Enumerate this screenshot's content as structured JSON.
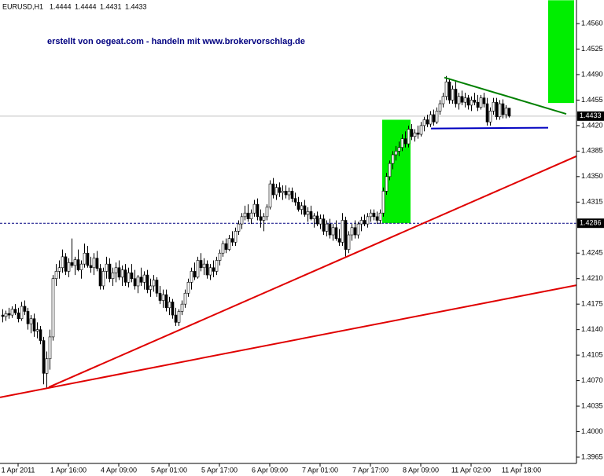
{
  "chart_data": {
    "type": "candlestick",
    "symbol": "EURUSD,H1",
    "annotation": "erstellt von oegeat.com - handeln mit www.brokervorschlag.de",
    "candles": [
      [
        1.416,
        1.4168,
        1.415,
        1.4158
      ],
      [
        1.4158,
        1.4166,
        1.4152,
        1.4162
      ],
      [
        1.4162,
        1.417,
        1.4155,
        1.416
      ],
      [
        1.416,
        1.4172,
        1.4156,
        1.4168
      ],
      [
        1.4168,
        1.4175,
        1.416,
        1.4163
      ],
      [
        1.4163,
        1.417,
        1.415,
        1.4155
      ],
      [
        1.4155,
        1.4178,
        1.4152,
        1.4172
      ],
      [
        1.4172,
        1.418,
        1.416,
        1.4165
      ],
      [
        1.4165,
        1.417,
        1.414,
        1.4148
      ],
      [
        1.4148,
        1.416,
        1.4135,
        1.4155
      ],
      [
        1.4155,
        1.4162,
        1.413,
        1.4138
      ],
      [
        1.4138,
        1.415,
        1.4128,
        1.414
      ],
      [
        1.414,
        1.4145,
        1.412,
        1.4125
      ],
      [
        1.4125,
        1.413,
        1.4065,
        1.408
      ],
      [
        1.408,
        1.411,
        1.406,
        1.41
      ],
      [
        1.41,
        1.414,
        1.4085,
        1.413
      ],
      [
        1.413,
        1.4215,
        1.4125,
        1.421
      ],
      [
        1.421,
        1.423,
        1.42,
        1.422
      ],
      [
        1.422,
        1.4235,
        1.421,
        1.4225
      ],
      [
        1.4225,
        1.425,
        1.4218,
        1.424
      ],
      [
        1.424,
        1.4245,
        1.4215,
        1.422
      ],
      [
        1.422,
        1.4238,
        1.4212,
        1.4232
      ],
      [
        1.4232,
        1.4265,
        1.4225,
        1.4228
      ],
      [
        1.4228,
        1.424,
        1.4215,
        1.4236
      ],
      [
        1.4236,
        1.425,
        1.422,
        1.4222
      ],
      [
        1.4222,
        1.4235,
        1.421,
        1.423
      ],
      [
        1.423,
        1.4258,
        1.4225,
        1.4245
      ],
      [
        1.4245,
        1.4255,
        1.4225,
        1.4228
      ],
      [
        1.4228,
        1.424,
        1.4218,
        1.4225
      ],
      [
        1.4225,
        1.4245,
        1.4215,
        1.4238
      ],
      [
        1.4238,
        1.4248,
        1.422,
        1.4224
      ],
      [
        1.4224,
        1.423,
        1.4195,
        1.42
      ],
      [
        1.42,
        1.4225,
        1.4195,
        1.422
      ],
      [
        1.422,
        1.424,
        1.421,
        1.423
      ],
      [
        1.423,
        1.4238,
        1.4205,
        1.421
      ],
      [
        1.421,
        1.4225,
        1.42,
        1.4218
      ],
      [
        1.4218,
        1.4232,
        1.4205,
        1.4225
      ],
      [
        1.4225,
        1.4235,
        1.4208,
        1.4212
      ],
      [
        1.4212,
        1.4228,
        1.42,
        1.4222
      ],
      [
        1.4222,
        1.423,
        1.42,
        1.4205
      ],
      [
        1.4205,
        1.4225,
        1.4198,
        1.4218
      ],
      [
        1.4218,
        1.423,
        1.4205,
        1.421
      ],
      [
        1.421,
        1.4222,
        1.4195,
        1.42
      ],
      [
        1.42,
        1.4215,
        1.419,
        1.4212
      ],
      [
        1.4212,
        1.4225,
        1.42,
        1.4205
      ],
      [
        1.4205,
        1.422,
        1.4195,
        1.4215
      ],
      [
        1.4215,
        1.4222,
        1.419,
        1.4195
      ],
      [
        1.4195,
        1.421,
        1.4185,
        1.42
      ],
      [
        1.42,
        1.4215,
        1.4192,
        1.4208
      ],
      [
        1.4208,
        1.4212,
        1.4185,
        1.419
      ],
      [
        1.419,
        1.42,
        1.4175,
        1.418
      ],
      [
        1.418,
        1.4195,
        1.417,
        1.4188
      ],
      [
        1.4188,
        1.4195,
        1.4165,
        1.417
      ],
      [
        1.417,
        1.4185,
        1.416,
        1.4178
      ],
      [
        1.4178,
        1.4182,
        1.4155,
        1.416
      ],
      [
        1.416,
        1.417,
        1.4145,
        1.415
      ],
      [
        1.415,
        1.4168,
        1.4145,
        1.4165
      ],
      [
        1.4165,
        1.418,
        1.416,
        1.4175
      ],
      [
        1.4175,
        1.4195,
        1.417,
        1.419
      ],
      [
        1.419,
        1.421,
        1.4185,
        1.4205
      ],
      [
        1.4205,
        1.4225,
        1.4195,
        1.422
      ],
      [
        1.422,
        1.4232,
        1.4208,
        1.4212
      ],
      [
        1.4212,
        1.424,
        1.421,
        1.4235
      ],
      [
        1.4235,
        1.4245,
        1.422,
        1.4225
      ],
      [
        1.4225,
        1.4238,
        1.4215,
        1.423
      ],
      [
        1.423,
        1.4235,
        1.421,
        1.4215
      ],
      [
        1.4215,
        1.423,
        1.4208,
        1.4225
      ],
      [
        1.4225,
        1.4235,
        1.4212,
        1.422
      ],
      [
        1.422,
        1.424,
        1.4215,
        1.4235
      ],
      [
        1.4235,
        1.425,
        1.4228,
        1.4245
      ],
      [
        1.4245,
        1.4262,
        1.424,
        1.4258
      ],
      [
        1.4258,
        1.4265,
        1.4245,
        1.425
      ],
      [
        1.425,
        1.427,
        1.4248,
        1.4265
      ],
      [
        1.4265,
        1.4275,
        1.4255,
        1.426
      ],
      [
        1.426,
        1.428,
        1.4255,
        1.4275
      ],
      [
        1.4275,
        1.429,
        1.427,
        1.4285
      ],
      [
        1.4285,
        1.43,
        1.4278,
        1.4295
      ],
      [
        1.4295,
        1.431,
        1.429,
        1.43
      ],
      [
        1.43,
        1.4312,
        1.4288,
        1.4292
      ],
      [
        1.4292,
        1.4305,
        1.4285,
        1.43
      ],
      [
        1.43,
        1.4318,
        1.4295,
        1.4312
      ],
      [
        1.4312,
        1.432,
        1.429,
        1.4295
      ],
      [
        1.4295,
        1.4305,
        1.428,
        1.429
      ],
      [
        1.429,
        1.43,
        1.4275,
        1.4295
      ],
      [
        1.4295,
        1.4312,
        1.429,
        1.4308
      ],
      [
        1.4308,
        1.4345,
        1.4305,
        1.434
      ],
      [
        1.434,
        1.4348,
        1.432,
        1.4325
      ],
      [
        1.4325,
        1.434,
        1.4318,
        1.4335
      ],
      [
        1.4335,
        1.4342,
        1.4322,
        1.4328
      ],
      [
        1.4328,
        1.4338,
        1.4318,
        1.433
      ],
      [
        1.433,
        1.4338,
        1.432,
        1.4325
      ],
      [
        1.4325,
        1.4335,
        1.4318,
        1.433
      ],
      [
        1.433,
        1.4335,
        1.4315,
        1.432
      ],
      [
        1.432,
        1.4328,
        1.431,
        1.4315
      ],
      [
        1.4315,
        1.4322,
        1.4302,
        1.4305
      ],
      [
        1.4305,
        1.4315,
        1.4298,
        1.431
      ],
      [
        1.431,
        1.4318,
        1.4295,
        1.4298
      ],
      [
        1.4298,
        1.4308,
        1.4288,
        1.4302
      ],
      [
        1.4302,
        1.431,
        1.429,
        1.4292
      ],
      [
        1.4292,
        1.43,
        1.428,
        1.4296
      ],
      [
        1.4296,
        1.4302,
        1.4282,
        1.4285
      ],
      [
        1.4285,
        1.4298,
        1.4278,
        1.4292
      ],
      [
        1.4292,
        1.4298,
        1.427,
        1.4275
      ],
      [
        1.4275,
        1.429,
        1.4268,
        1.4285
      ],
      [
        1.4285,
        1.4292,
        1.4265,
        1.427
      ],
      [
        1.427,
        1.4285,
        1.4262,
        1.428
      ],
      [
        1.428,
        1.429,
        1.4262,
        1.4265
      ],
      [
        1.4265,
        1.4278,
        1.4255,
        1.426
      ],
      [
        1.426,
        1.43,
        1.4255,
        1.429
      ],
      [
        1.429,
        1.4295,
        1.424,
        1.425
      ],
      [
        1.425,
        1.4275,
        1.4245,
        1.427
      ],
      [
        1.427,
        1.4285,
        1.4262,
        1.428
      ],
      [
        1.428,
        1.429,
        1.4265,
        1.427
      ],
      [
        1.427,
        1.4288,
        1.4265,
        1.4285
      ],
      [
        1.4285,
        1.4295,
        1.4275,
        1.429
      ],
      [
        1.429,
        1.4298,
        1.4282,
        1.4285
      ],
      [
        1.4285,
        1.43,
        1.428,
        1.4295
      ],
      [
        1.4295,
        1.4305,
        1.4288,
        1.43
      ],
      [
        1.43,
        1.4305,
        1.429,
        1.4295
      ],
      [
        1.4295,
        1.4302,
        1.4285,
        1.429
      ],
      [
        1.429,
        1.4305,
        1.4285,
        1.43
      ],
      [
        1.43,
        1.4335,
        1.4295,
        1.433
      ],
      [
        1.433,
        1.4355,
        1.4325,
        1.435
      ],
      [
        1.435,
        1.4372,
        1.4345,
        1.4368
      ],
      [
        1.4368,
        1.4385,
        1.436,
        1.438
      ],
      [
        1.438,
        1.4392,
        1.4372,
        1.4385
      ],
      [
        1.4385,
        1.4398,
        1.4378,
        1.439
      ],
      [
        1.439,
        1.4408,
        1.4385,
        1.4402
      ],
      [
        1.4402,
        1.4412,
        1.439,
        1.4395
      ],
      [
        1.4395,
        1.442,
        1.439,
        1.4415
      ],
      [
        1.4415,
        1.4422,
        1.44,
        1.4405
      ],
      [
        1.4405,
        1.4415,
        1.4398,
        1.441
      ],
      [
        1.441,
        1.442,
        1.4402,
        1.4408
      ],
      [
        1.4408,
        1.4425,
        1.4405,
        1.442
      ],
      [
        1.442,
        1.4432,
        1.4412,
        1.4428
      ],
      [
        1.4428,
        1.4435,
        1.4418,
        1.4422
      ],
      [
        1.4422,
        1.444,
        1.4418,
        1.4435
      ],
      [
        1.4435,
        1.4442,
        1.442,
        1.4425
      ],
      [
        1.4425,
        1.4445,
        1.4422,
        1.444
      ],
      [
        1.444,
        1.4455,
        1.4435,
        1.445
      ],
      [
        1.445,
        1.4465,
        1.4445,
        1.446
      ],
      [
        1.446,
        1.4488,
        1.4455,
        1.448
      ],
      [
        1.448,
        1.4485,
        1.445,
        1.4455
      ],
      [
        1.4455,
        1.4475,
        1.445,
        1.447
      ],
      [
        1.447,
        1.4482,
        1.4445,
        1.445
      ],
      [
        1.445,
        1.4465,
        1.4442,
        1.446
      ],
      [
        1.446,
        1.4468,
        1.4448,
        1.4452
      ],
      [
        1.4452,
        1.4465,
        1.4445,
        1.4458
      ],
      [
        1.4458,
        1.4462,
        1.4442,
        1.4448
      ],
      [
        1.4448,
        1.446,
        1.444,
        1.4455
      ],
      [
        1.4455,
        1.4465,
        1.4448,
        1.4452
      ],
      [
        1.4452,
        1.4462,
        1.444,
        1.4445
      ],
      [
        1.4445,
        1.4462,
        1.4442,
        1.4458
      ],
      [
        1.4458,
        1.4465,
        1.4445,
        1.445
      ],
      [
        1.445,
        1.4458,
        1.442,
        1.4425
      ],
      [
        1.4425,
        1.4445,
        1.442,
        1.444
      ],
      [
        1.444,
        1.4458,
        1.4435,
        1.4452
      ],
      [
        1.4452,
        1.4458,
        1.4428,
        1.4432
      ],
      [
        1.4432,
        1.4455,
        1.4428,
        1.445
      ],
      [
        1.445,
        1.4456,
        1.443,
        1.4435
      ],
      [
        1.4435,
        1.4448,
        1.443,
        1.4444
      ],
      [
        1.4444,
        1.4444,
        1.4431,
        1.4433
      ]
    ],
    "up_color": "#ffffff",
    "down_color": "#000000",
    "wick_color": "#000000",
    "ylim": [
      1.3965,
      1.456
    ],
    "yticks": [
      1.3965,
      {
        "value": 1.4,
        "label": "1.4000"
      },
      1.4035,
      {
        "value": 1.407,
        "label": "1.4070"
      },
      1.4105,
      {
        "value": 1.414,
        "label": "1.4140"
      },
      1.4175,
      {
        "value": 1.421,
        "label": "1.4210"
      },
      1.4245,
      1.4315,
      {
        "value": 1.435,
        "label": "1.4350"
      },
      1.4385,
      {
        "value": 1.442,
        "label": "1.4420"
      },
      1.4455,
      {
        "value": 1.449,
        "label": "1.4490"
      },
      1.4525,
      {
        "value": 1.456,
        "label": "1.4560"
      }
    ],
    "xticks": [
      {
        "value": 5,
        "label": "1 Apr 2011"
      },
      {
        "value": 21,
        "label": "1 Apr 16:00"
      },
      {
        "value": 37,
        "label": "4 Apr 09:00"
      },
      {
        "value": 53,
        "label": "5 Apr 01:00"
      },
      {
        "value": 69,
        "label": "5 Apr 17:00"
      },
      {
        "value": 85,
        "label": "6 Apr 09:00"
      },
      {
        "value": 101,
        "label": "7 Apr 01:00"
      },
      {
        "value": 117,
        "label": "7 Apr 17:00"
      },
      {
        "value": 133,
        "label": "8 Apr 09:00"
      },
      {
        "value": 149,
        "label": "11 Apr 02:00"
      },
      {
        "value": 165,
        "label": "11 Apr 18:00"
      }
    ],
    "hline": 1.4286,
    "trendlines": [
      {
        "color": "#e00000",
        "x": [
          14.75,
          182.5
        ],
        "y": [
          1.4061,
          1.4378
        ]
      },
      {
        "color": "#e00000",
        "x": [
          -0.75,
          182.5
        ],
        "y": [
          1.4047,
          1.4201
        ]
      },
      {
        "color": "#008000",
        "x": [
          140.5,
          179.25
        ],
        "y": [
          1.4486,
          1.4436
        ]
      },
      {
        "color": "#0000c0",
        "x": [
          136.25,
          173.5
        ],
        "y": [
          1.4416,
          1.4417
        ]
      }
    ],
    "zones": [
      {
        "color": "#00ee00",
        "x": [
          120.75,
          129.75
        ],
        "y": [
          1.4428,
          1.4286
        ]
      },
      {
        "color": "#00ee00",
        "x": [
          173.5,
          181.75
        ],
        "y": [
          1.4592,
          1.4451
        ]
      }
    ]
  }
}
